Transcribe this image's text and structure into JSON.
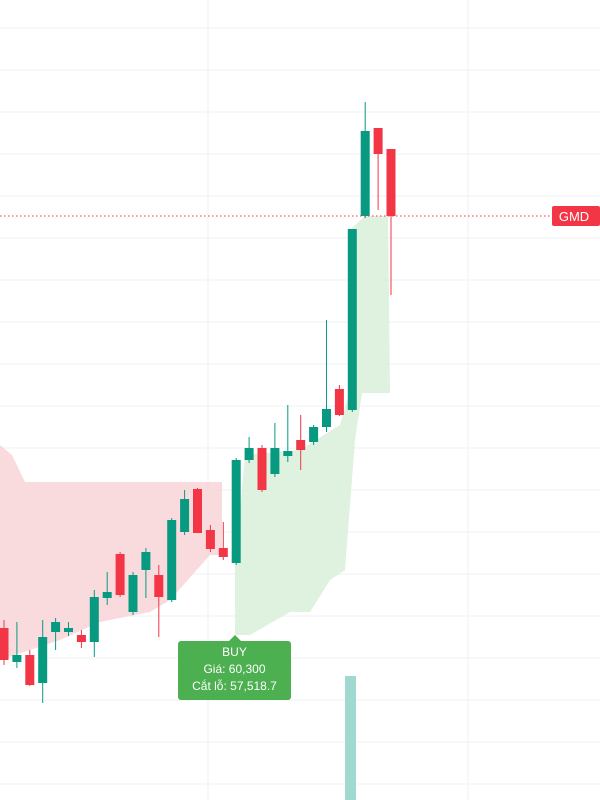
{
  "chart_data": {
    "type": "candlestick",
    "symbol": "GMD",
    "up_color": "#089981",
    "down_color": "#f23645",
    "ylim": [
      56900,
      64900
    ],
    "last_price": 62740,
    "signal": {
      "title": "BUY",
      "price_label": "Giá: 60,300",
      "stop_label": "Cắt lỗ: 57,518.7",
      "price": 60300,
      "stop": 57518.7
    },
    "candles": [
      {
        "open": 58620,
        "high": 58700,
        "low": 58250,
        "close": 58300
      },
      {
        "open": 58280,
        "high": 58680,
        "low": 58220,
        "close": 58350
      },
      {
        "open": 58350,
        "high": 58400,
        "low": 58040,
        "close": 58050
      },
      {
        "open": 58070,
        "high": 58700,
        "low": 57870,
        "close": 58530
      },
      {
        "open": 58580,
        "high": 58720,
        "low": 58400,
        "close": 58680
      },
      {
        "open": 58580,
        "high": 58680,
        "low": 58540,
        "close": 58620
      },
      {
        "open": 58550,
        "high": 58600,
        "low": 58420,
        "close": 58480
      },
      {
        "open": 58480,
        "high": 59000,
        "low": 58330,
        "close": 58930
      },
      {
        "open": 58920,
        "high": 59180,
        "low": 58850,
        "close": 58980
      },
      {
        "open": 59360,
        "high": 59380,
        "low": 58930,
        "close": 58950
      },
      {
        "open": 58780,
        "high": 59180,
        "low": 58750,
        "close": 59150
      },
      {
        "open": 59200,
        "high": 59420,
        "low": 58920,
        "close": 59380
      },
      {
        "open": 59150,
        "high": 59250,
        "low": 58530,
        "close": 58930
      },
      {
        "open": 58900,
        "high": 59720,
        "low": 58880,
        "close": 59700
      },
      {
        "open": 59580,
        "high": 60000,
        "low": 59550,
        "close": 59910
      },
      {
        "open": 60010,
        "high": 60020,
        "low": 59570,
        "close": 59570
      },
      {
        "open": 59600,
        "high": 59650,
        "low": 59380,
        "close": 59410
      },
      {
        "open": 59420,
        "high": 59680,
        "low": 59300,
        "close": 59330
      },
      {
        "open": 59270,
        "high": 60320,
        "low": 59250,
        "close": 60300
      },
      {
        "open": 60300,
        "high": 60530,
        "low": 60270,
        "close": 60420
      },
      {
        "open": 60420,
        "high": 60450,
        "low": 59980,
        "close": 60000
      },
      {
        "open": 60160,
        "high": 60670,
        "low": 60130,
        "close": 60420
      },
      {
        "open": 60340,
        "high": 60850,
        "low": 60280,
        "close": 60390
      },
      {
        "open": 60500,
        "high": 60750,
        "low": 60200,
        "close": 60400
      },
      {
        "open": 60480,
        "high": 60650,
        "low": 60450,
        "close": 60630
      },
      {
        "open": 60630,
        "high": 61700,
        "low": 60580,
        "close": 60810
      },
      {
        "open": 61010,
        "high": 61050,
        "low": 60740,
        "close": 60750
      },
      {
        "open": 60800,
        "high": 62610,
        "low": 60780,
        "close": 62610
      },
      {
        "open": 62740,
        "high": 63880,
        "low": 62720,
        "close": 63590
      },
      {
        "open": 63620,
        "high": 63620,
        "low": 62800,
        "close": 63360
      },
      {
        "open": 63410,
        "high": 63410,
        "low": 61950,
        "close": 62740
      }
    ]
  }
}
